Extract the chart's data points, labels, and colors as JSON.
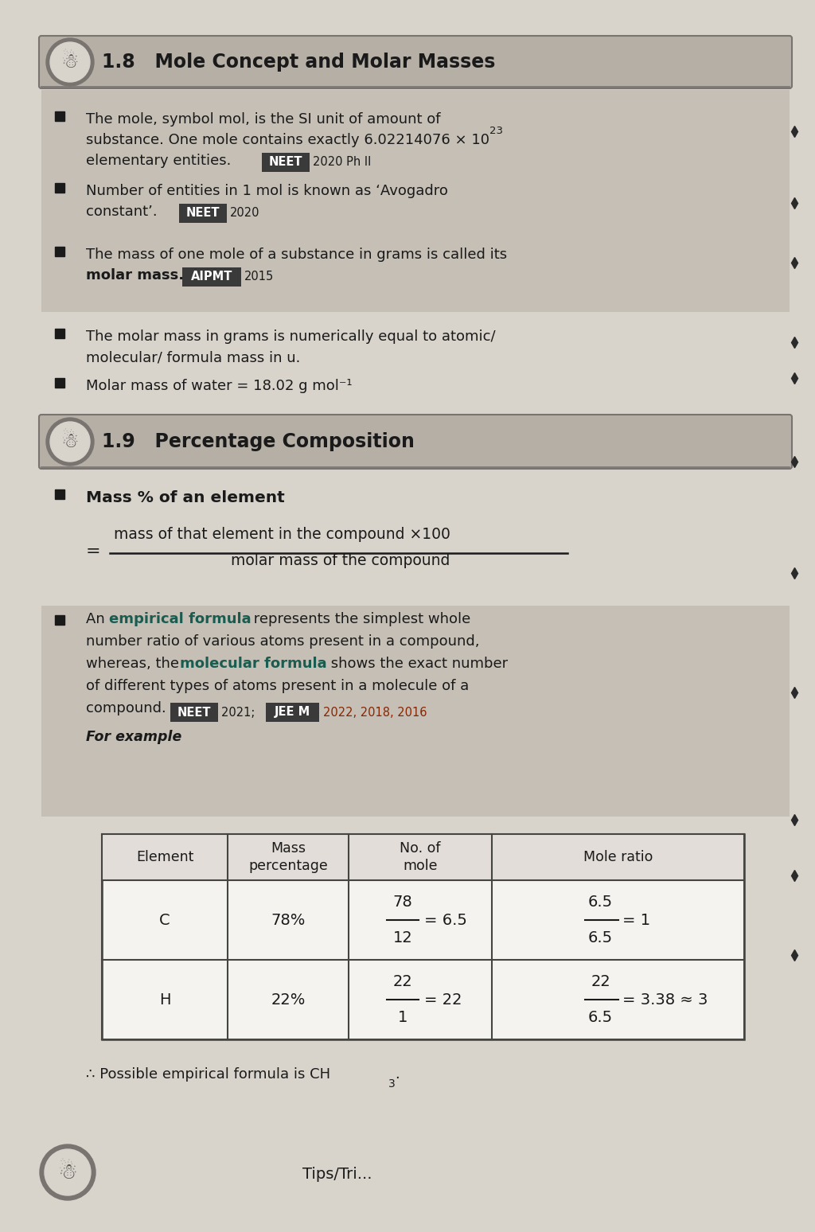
{
  "page_bg": "#d8d3cb",
  "header_bg": "#b5afa6",
  "highlight_bg": "#c5bfb6",
  "text_color": "#1a1a1a",
  "teal_color": "#1a5c50",
  "brown_year": "#8b2500",
  "neet_bg": "#3a3a3a",
  "jeem_bg": "#3a3a3a",
  "section18_title": "1.8   Mole Concept and Molar Masses",
  "section19_title": "1.9   Percentage Composition",
  "formula_numerator": "mass of that element in the compound ×100",
  "formula_denominator": "molar mass of the compound",
  "table_headers": [
    "Element",
    "Mass\npercentage",
    "No. of\nmole",
    "Mole ratio"
  ],
  "conclusion": "∴ Possible empirical formula is CH",
  "conclusion_sub": "3"
}
